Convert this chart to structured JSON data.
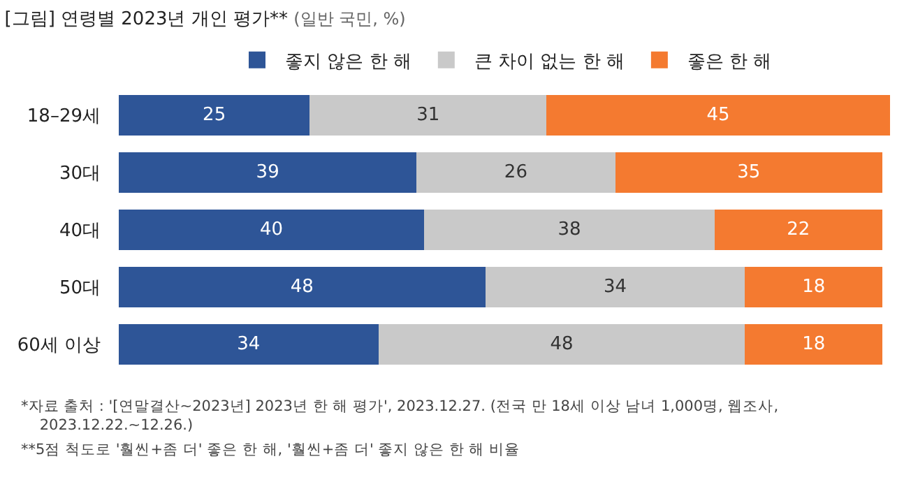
{
  "chart_data": {
    "type": "bar",
    "orientation": "horizontal",
    "stacked": true,
    "title": "[그림] 연령별 2023년 개인 평가**",
    "subtitle": "(일반 국민, %)",
    "categories": [
      "18–29세",
      "30대",
      "40대",
      "50대",
      "60세 이상"
    ],
    "series": [
      {
        "name": "좋지 않은 한 해",
        "color": "#2e5597",
        "values": [
          25,
          39,
          40,
          48,
          34
        ]
      },
      {
        "name": "큰 차이 없는 한 해",
        "color": "#c9c9c9",
        "values": [
          31,
          26,
          38,
          34,
          48
        ]
      },
      {
        "name": "좋은 한 해",
        "color": "#f47a30",
        "values": [
          45,
          35,
          22,
          18,
          18
        ]
      }
    ],
    "data_labels": true,
    "legend": "top",
    "annotations": [
      "*자료 출처 : '[연말결산~2023년] 2023년 한 해 평가', 2023.12.27. (전국 만 18세 이상 남녀 1,000명, 웹조사,\n2023.12.22.~12.26.)",
      "**5점 척도로 '훨씬+좀 더' 좋은 한 해, '훨씬+좀 더' 좋지 않은 한 해 비율"
    ]
  }
}
